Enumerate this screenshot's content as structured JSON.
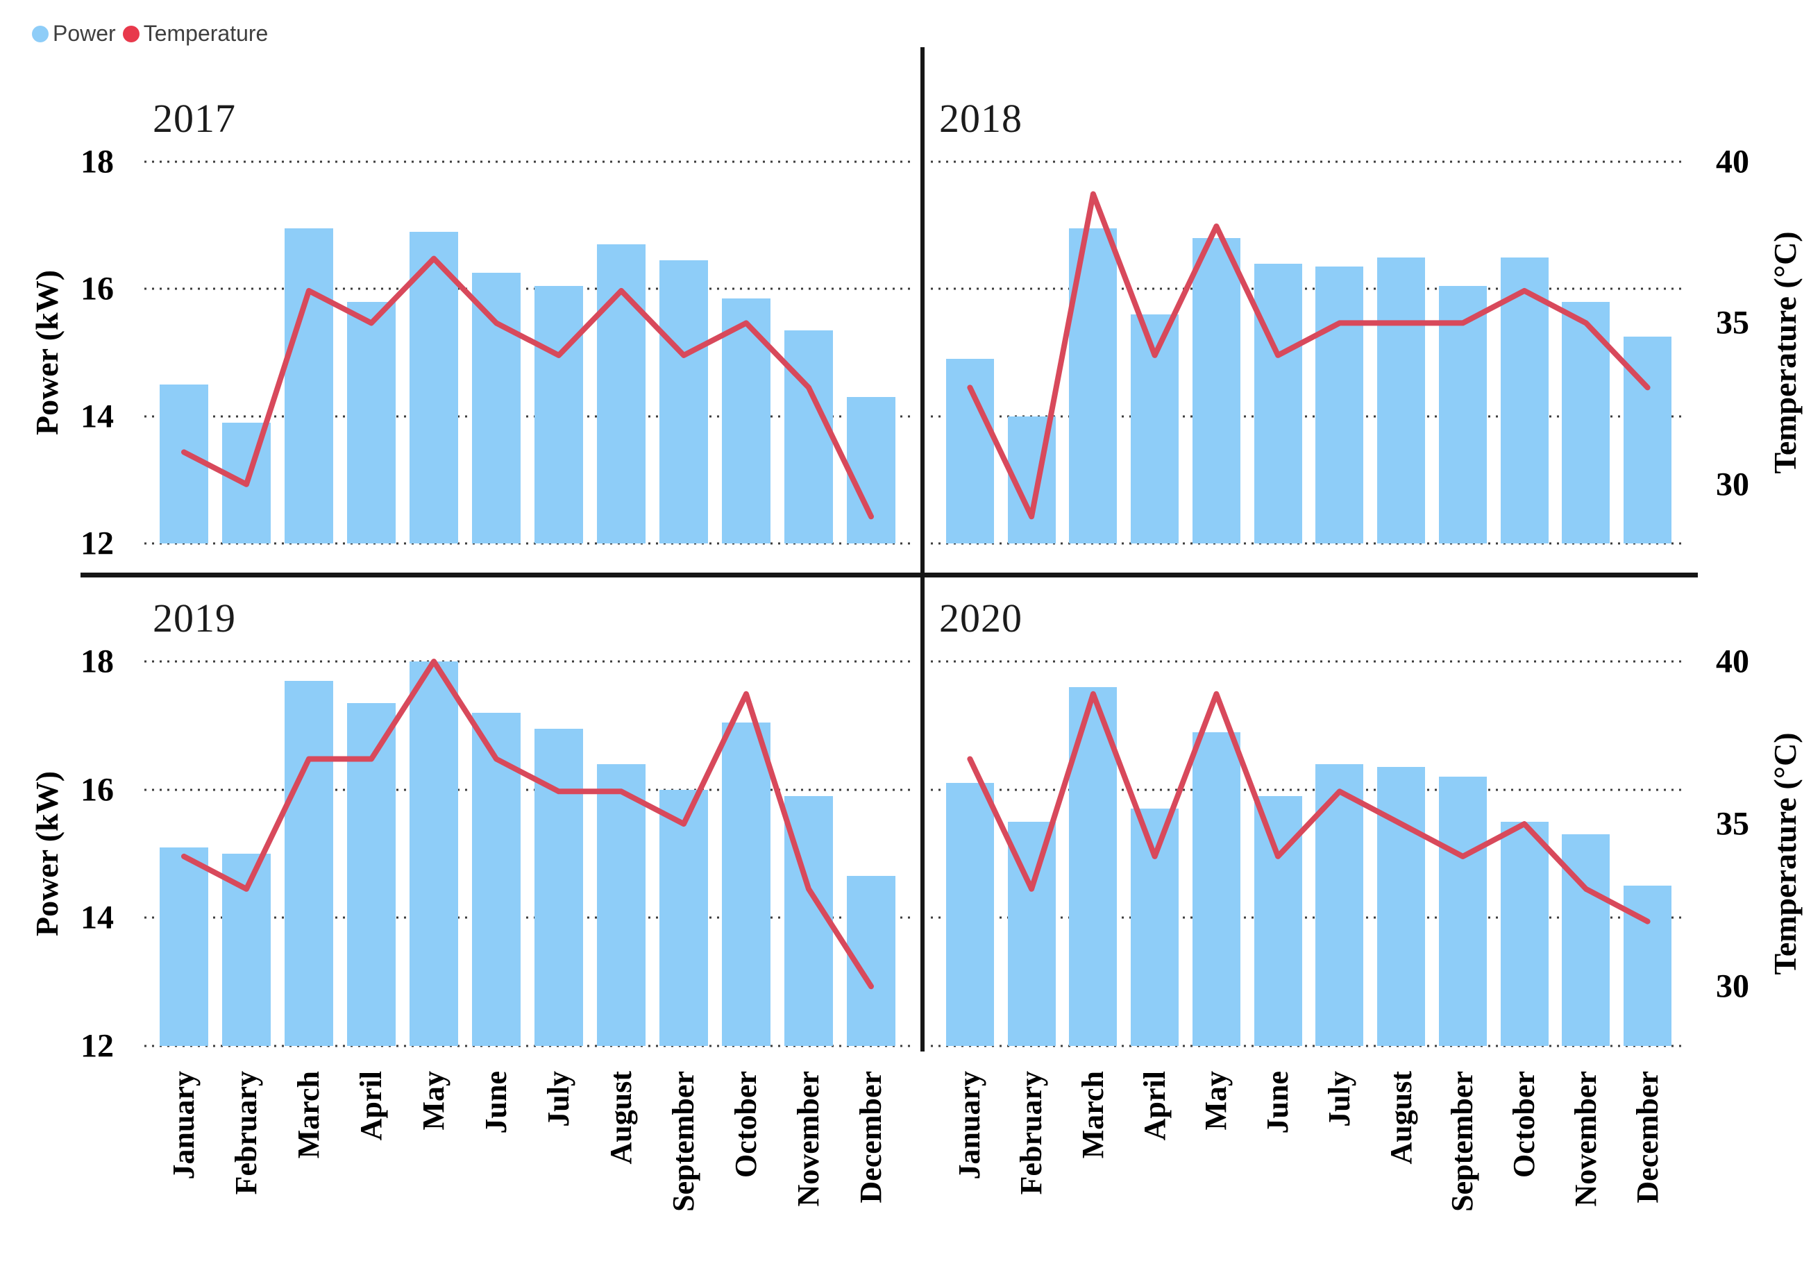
{
  "legend": {
    "items": [
      {
        "label": "Power",
        "color": "#8ECDF8",
        "marker": "circle"
      },
      {
        "label": "Temperature",
        "color": "#E8394C",
        "marker": "circle"
      }
    ]
  },
  "colors": {
    "power_bar": "#8ECDF8",
    "temperature_line": "#D8495B",
    "gridline": "#3c3c3c",
    "divider": "#161616"
  },
  "axes": {
    "power_label": "Power (kW)",
    "temp_label": "Temperature (°C)",
    "power_ticks": [
      18,
      16,
      14,
      12
    ],
    "temp_ticks": [
      40,
      35,
      30
    ],
    "power_min": 12,
    "power_max": 18,
    "temp_top_value": 40,
    "degrees_per_kw": 1.972,
    "grid": "dotted horizontal lines at power ticks"
  },
  "months": [
    "January",
    "February",
    "March",
    "April",
    "May",
    "June",
    "July",
    "August",
    "September",
    "October",
    "November",
    "December"
  ],
  "chart_data": [
    {
      "type": "bar+line",
      "title": "2017",
      "categories": [
        "January",
        "February",
        "March",
        "April",
        "May",
        "June",
        "July",
        "August",
        "September",
        "October",
        "November",
        "December"
      ],
      "series": [
        {
          "name": "Power",
          "type": "bar",
          "axis": "left",
          "unit": "kW",
          "values": [
            14.5,
            13.9,
            16.95,
            15.8,
            16.9,
            16.25,
            16.05,
            16.7,
            16.45,
            15.85,
            15.35,
            14.3
          ]
        },
        {
          "name": "Temperature",
          "type": "line",
          "axis": "right",
          "unit": "°C",
          "values": [
            31,
            30,
            36,
            35,
            37,
            35,
            34,
            36,
            34,
            35,
            33,
            29
          ]
        }
      ],
      "ylim_left": [
        12,
        18
      ],
      "legend_position": "figure-top-left"
    },
    {
      "type": "bar+line",
      "title": "2018",
      "categories": [
        "January",
        "February",
        "March",
        "April",
        "May",
        "June",
        "July",
        "August",
        "September",
        "October",
        "November",
        "December"
      ],
      "series": [
        {
          "name": "Power",
          "type": "bar",
          "axis": "left",
          "unit": "kW",
          "values": [
            14.9,
            14.0,
            16.95,
            15.6,
            16.8,
            16.4,
            16.35,
            16.5,
            16.05,
            16.5,
            15.8,
            15.25
          ]
        },
        {
          "name": "Temperature",
          "type": "line",
          "axis": "right",
          "unit": "°C",
          "values": [
            33,
            29,
            39,
            34,
            38,
            34,
            35,
            35,
            35,
            36,
            35,
            33
          ]
        }
      ],
      "ylim_left": [
        12,
        18
      ],
      "legend_position": "figure-top-left"
    },
    {
      "type": "bar+line",
      "title": "2019",
      "categories": [
        "January",
        "February",
        "March",
        "April",
        "May",
        "June",
        "July",
        "August",
        "September",
        "October",
        "November",
        "December"
      ],
      "series": [
        {
          "name": "Power",
          "type": "bar",
          "axis": "left",
          "unit": "kW",
          "values": [
            15.1,
            15.0,
            17.7,
            17.35,
            18.0,
            17.2,
            16.95,
            16.4,
            16.0,
            17.05,
            15.9,
            14.65
          ]
        },
        {
          "name": "Temperature",
          "type": "line",
          "axis": "right",
          "unit": "°C",
          "values": [
            34,
            33,
            37,
            37,
            40,
            37,
            36,
            36,
            35,
            39,
            33,
            30
          ]
        }
      ],
      "ylim_left": [
        12,
        18
      ],
      "legend_position": "figure-top-left"
    },
    {
      "type": "bar+line",
      "title": "2020",
      "categories": [
        "January",
        "February",
        "March",
        "April",
        "May",
        "June",
        "July",
        "August",
        "September",
        "October",
        "November",
        "December"
      ],
      "series": [
        {
          "name": "Power",
          "type": "bar",
          "axis": "left",
          "unit": "kW",
          "values": [
            16.1,
            15.5,
            17.6,
            15.7,
            16.9,
            15.9,
            16.4,
            16.35,
            16.2,
            15.5,
            15.3,
            14.5
          ]
        },
        {
          "name": "Temperature",
          "type": "line",
          "axis": "right",
          "unit": "°C",
          "values": [
            37,
            33,
            39,
            34,
            39,
            34,
            36,
            35,
            34,
            35,
            33,
            32
          ]
        }
      ],
      "ylim_left": [
        12,
        18
      ],
      "legend_position": "figure-top-left"
    }
  ]
}
